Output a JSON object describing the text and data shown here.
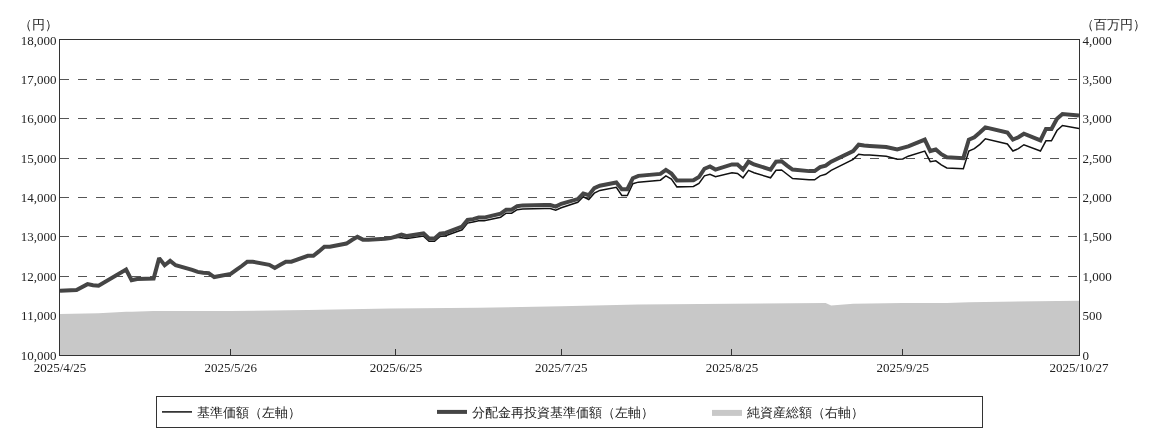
{
  "chart_data": {
    "type": "line",
    "ylabel": "（円）",
    "y2label": "（百万円）",
    "xlim": [
      "2025-04-25",
      "2025-10-27"
    ],
    "xticks": [
      {
        "value": "2025-04-25",
        "label": "2025/4/25"
      },
      {
        "value": "2025-05-26",
        "label": "2025/5/26"
      },
      {
        "value": "2025-06-25",
        "label": "2025/6/25"
      },
      {
        "value": "2025-07-25",
        "label": "2025/7/25"
      },
      {
        "value": "2025-08-25",
        "label": "2025/8/25"
      },
      {
        "value": "2025-09-25",
        "label": "2025/9/25"
      },
      {
        "value": "2025-10-27",
        "label": "2025/10/27"
      }
    ],
    "ylim": [
      10000,
      18000
    ],
    "yticks": [
      {
        "value": 10000,
        "label": "10,000"
      },
      {
        "value": 11000,
        "label": "11,000"
      },
      {
        "value": 12000,
        "label": "12,000"
      },
      {
        "value": 13000,
        "label": "13,000"
      },
      {
        "value": 14000,
        "label": "14,000"
      },
      {
        "value": 15000,
        "label": "15,000"
      },
      {
        "value": 16000,
        "label": "16,000"
      },
      {
        "value": 17000,
        "label": "17,000"
      },
      {
        "value": 18000,
        "label": "18,000"
      }
    ],
    "y2lim": [
      0,
      4000
    ],
    "y2ticks": [
      0,
      500,
      {
        "value": 1000,
        "label": "1,000"
      },
      {
        "value": 1500,
        "label": "1,500"
      },
      {
        "value": 2000,
        "label": "2,000"
      },
      {
        "value": 2500,
        "label": "2,500"
      },
      {
        "value": 3000,
        "label": "3,000"
      },
      {
        "value": 3500,
        "label": "3,500"
      },
      {
        "value": 4000,
        "label": "4,000"
      }
    ],
    "grid": "y",
    "legend": "bottom",
    "series": [
      {
        "name": "純資産総額（右軸）",
        "type": "area",
        "axis": "y2",
        "color": "#c8c8c8",
        "x": [
          "2025-04-25",
          "2025-05-02",
          "2025-05-07",
          "2025-05-08",
          "2025-05-12",
          "2025-05-26",
          "2025-06-09",
          "2025-06-24",
          "2025-07-10",
          "2025-07-25",
          "2025-08-08",
          "2025-08-25",
          "2025-09-11",
          "2025-09-12",
          "2025-09-16",
          "2025-09-25",
          "2025-10-03",
          "2025-10-07",
          "2025-10-27"
        ],
        "values": [
          520,
          530,
          550,
          550,
          560,
          560,
          570,
          590,
          600,
          620,
          640,
          650,
          660,
          630,
          650,
          660,
          660,
          670,
          690
        ]
      },
      {
        "name": "基準価額（左軸）",
        "axis": "y",
        "color": "#111111",
        "x": [
          "2025-04-25",
          "2025-04-28",
          "2025-04-30",
          "2025-05-01",
          "2025-05-02",
          "2025-05-07",
          "2025-05-08",
          "2025-05-09",
          "2025-05-12",
          "2025-05-13",
          "2025-05-14",
          "2025-05-15",
          "2025-05-16",
          "2025-05-19",
          "2025-05-20",
          "2025-05-21",
          "2025-05-22",
          "2025-05-23",
          "2025-05-26",
          "2025-05-27",
          "2025-05-28",
          "2025-05-29",
          "2025-05-30",
          "2025-06-02",
          "2025-06-03",
          "2025-06-04",
          "2025-06-05",
          "2025-06-06",
          "2025-06-09",
          "2025-06-10",
          "2025-06-11",
          "2025-06-12",
          "2025-06-13",
          "2025-06-16",
          "2025-06-17",
          "2025-06-18",
          "2025-06-19",
          "2025-06-20",
          "2025-06-23",
          "2025-06-24",
          "2025-06-25",
          "2025-06-26",
          "2025-06-27",
          "2025-06-30",
          "2025-07-01",
          "2025-07-02",
          "2025-07-03",
          "2025-07-04",
          "2025-07-07",
          "2025-07-08",
          "2025-07-09",
          "2025-07-10",
          "2025-07-11",
          "2025-07-14",
          "2025-07-15",
          "2025-07-16",
          "2025-07-17",
          "2025-07-18",
          "2025-07-22",
          "2025-07-23",
          "2025-07-24",
          "2025-07-25",
          "2025-07-28",
          "2025-07-29",
          "2025-07-30",
          "2025-07-31",
          "2025-08-01",
          "2025-08-04",
          "2025-08-05",
          "2025-08-06",
          "2025-08-07",
          "2025-08-08",
          "2025-08-12",
          "2025-08-13",
          "2025-08-14",
          "2025-08-15",
          "2025-08-18",
          "2025-08-19",
          "2025-08-20",
          "2025-08-21",
          "2025-08-22",
          "2025-08-25",
          "2025-08-26",
          "2025-08-27",
          "2025-08-28",
          "2025-08-29",
          "2025-09-01",
          "2025-09-02",
          "2025-09-03",
          "2025-09-04",
          "2025-09-05",
          "2025-09-08",
          "2025-09-09",
          "2025-09-10",
          "2025-09-11",
          "2025-09-12",
          "2025-09-16",
          "2025-09-17",
          "2025-09-18",
          "2025-09-19",
          "2025-09-22",
          "2025-09-24",
          "2025-09-25",
          "2025-09-26",
          "2025-09-29",
          "2025-09-30",
          "2025-10-01",
          "2025-10-02",
          "2025-10-03",
          "2025-10-06",
          "2025-10-07",
          "2025-10-08",
          "2025-10-09",
          "2025-10-10",
          "2025-10-14",
          "2025-10-15",
          "2025-10-16",
          "2025-10-17",
          "2025-10-20",
          "2025-10-21",
          "2025-10-22",
          "2025-10-23",
          "2025-10-24",
          "2025-10-27"
        ],
        "values": [
          11630,
          11650,
          11800,
          11770,
          11760,
          12170,
          11900,
          11930,
          11940,
          12460,
          12280,
          12390,
          12280,
          12160,
          12110,
          12090,
          12080,
          11980,
          12060,
          12160,
          12260,
          12370,
          12370,
          12290,
          12210,
          12290,
          12370,
          12370,
          12520,
          12520,
          12630,
          12750,
          12750,
          12830,
          12920,
          13000,
          12930,
          12930,
          12950,
          12960,
          12990,
          12980,
          12960,
          13020,
          12890,
          12890,
          13010,
          13030,
          13180,
          13350,
          13380,
          13410,
          13410,
          13500,
          13600,
          13600,
          13690,
          13710,
          13720,
          13720,
          13680,
          13740,
          13880,
          14020,
          13950,
          14110,
          14180,
          14260,
          14050,
          14050,
          14350,
          14390,
          14440,
          14550,
          14470,
          14270,
          14280,
          14360,
          14550,
          14590,
          14530,
          14630,
          14610,
          14500,
          14690,
          14630,
          14500,
          14690,
          14700,
          14590,
          14480,
          14450,
          14450,
          14550,
          14590,
          14690,
          14970,
          15100,
          15080,
          15080,
          15050,
          14970,
          14980,
          15050,
          15180,
          14910,
          14930,
          14830,
          14750,
          14730,
          15180,
          15240,
          15350,
          15490,
          15360,
          15180,
          15240,
          15340,
          15180,
          15440,
          15440,
          15700,
          15830,
          15750
        ]
      },
      {
        "name": "分配金再投資基準価額（左軸）",
        "axis": "y",
        "color": "#454545",
        "x": [
          "2025-04-25",
          "2025-04-28",
          "2025-04-30",
          "2025-05-01",
          "2025-05-02",
          "2025-05-07",
          "2025-05-08",
          "2025-05-09",
          "2025-05-12",
          "2025-05-13",
          "2025-05-14",
          "2025-05-15",
          "2025-05-16",
          "2025-05-19",
          "2025-05-20",
          "2025-05-21",
          "2025-05-22",
          "2025-05-23",
          "2025-05-26",
          "2025-05-27",
          "2025-05-28",
          "2025-05-29",
          "2025-05-30",
          "2025-06-02",
          "2025-06-03",
          "2025-06-04",
          "2025-06-05",
          "2025-06-06",
          "2025-06-09",
          "2025-06-10",
          "2025-06-11",
          "2025-06-12",
          "2025-06-13",
          "2025-06-16",
          "2025-06-17",
          "2025-06-18",
          "2025-06-19",
          "2025-06-20",
          "2025-06-23",
          "2025-06-24",
          "2025-06-25",
          "2025-06-26",
          "2025-06-27",
          "2025-06-30",
          "2025-07-01",
          "2025-07-02",
          "2025-07-03",
          "2025-07-04",
          "2025-07-07",
          "2025-07-08",
          "2025-07-09",
          "2025-07-10",
          "2025-07-11",
          "2025-07-14",
          "2025-07-15",
          "2025-07-16",
          "2025-07-17",
          "2025-07-18",
          "2025-07-22",
          "2025-07-23",
          "2025-07-24",
          "2025-07-25",
          "2025-07-28",
          "2025-07-29",
          "2025-07-30",
          "2025-07-31",
          "2025-08-01",
          "2025-08-04",
          "2025-08-05",
          "2025-08-06",
          "2025-08-07",
          "2025-08-08",
          "2025-08-12",
          "2025-08-13",
          "2025-08-14",
          "2025-08-15",
          "2025-08-18",
          "2025-08-19",
          "2025-08-20",
          "2025-08-21",
          "2025-08-22",
          "2025-08-25",
          "2025-08-26",
          "2025-08-27",
          "2025-08-28",
          "2025-08-29",
          "2025-09-01",
          "2025-09-02",
          "2025-09-03",
          "2025-09-04",
          "2025-09-05",
          "2025-09-08",
          "2025-09-09",
          "2025-09-10",
          "2025-09-11",
          "2025-09-12",
          "2025-09-16",
          "2025-09-17",
          "2025-09-18",
          "2025-09-19",
          "2025-09-22",
          "2025-09-24",
          "2025-09-25",
          "2025-09-26",
          "2025-09-29",
          "2025-09-30",
          "2025-10-01",
          "2025-10-02",
          "2025-10-03",
          "2025-10-06",
          "2025-10-07",
          "2025-10-08",
          "2025-10-09",
          "2025-10-10",
          "2025-10-14",
          "2025-10-15",
          "2025-10-16",
          "2025-10-17",
          "2025-10-20",
          "2025-10-21",
          "2025-10-22",
          "2025-10-23",
          "2025-10-24",
          "2025-10-27"
        ],
        "values": [
          11630,
          11650,
          11800,
          11770,
          11760,
          12170,
          11900,
          11930,
          11940,
          12460,
          12280,
          12390,
          12280,
          12160,
          12110,
          12090,
          12080,
          11980,
          12060,
          12160,
          12260,
          12370,
          12370,
          12290,
          12210,
          12290,
          12370,
          12370,
          12520,
          12520,
          12630,
          12750,
          12750,
          12830,
          12920,
          13000,
          12930,
          12930,
          12950,
          12970,
          13010,
          13060,
          13020,
          13090,
          12960,
          12960,
          13080,
          13100,
          13260,
          13430,
          13450,
          13490,
          13490,
          13590,
          13690,
          13690,
          13780,
          13800,
          13810,
          13810,
          13770,
          13840,
          13960,
          14100,
          14060,
          14240,
          14300,
          14380,
          14210,
          14210,
          14490,
          14550,
          14600,
          14700,
          14610,
          14430,
          14440,
          14520,
          14730,
          14790,
          14710,
          14840,
          14840,
          14710,
          14910,
          14840,
          14710,
          14910,
          14920,
          14810,
          14710,
          14670,
          14670,
          14770,
          14810,
          14910,
          15180,
          15340,
          15320,
          15310,
          15280,
          15220,
          15260,
          15300,
          15470,
          15180,
          15220,
          15100,
          15020,
          15000,
          15470,
          15530,
          15650,
          15780,
          15650,
          15470,
          15530,
          15620,
          15450,
          15740,
          15740,
          16000,
          16120,
          16080
        ]
      }
    ]
  }
}
